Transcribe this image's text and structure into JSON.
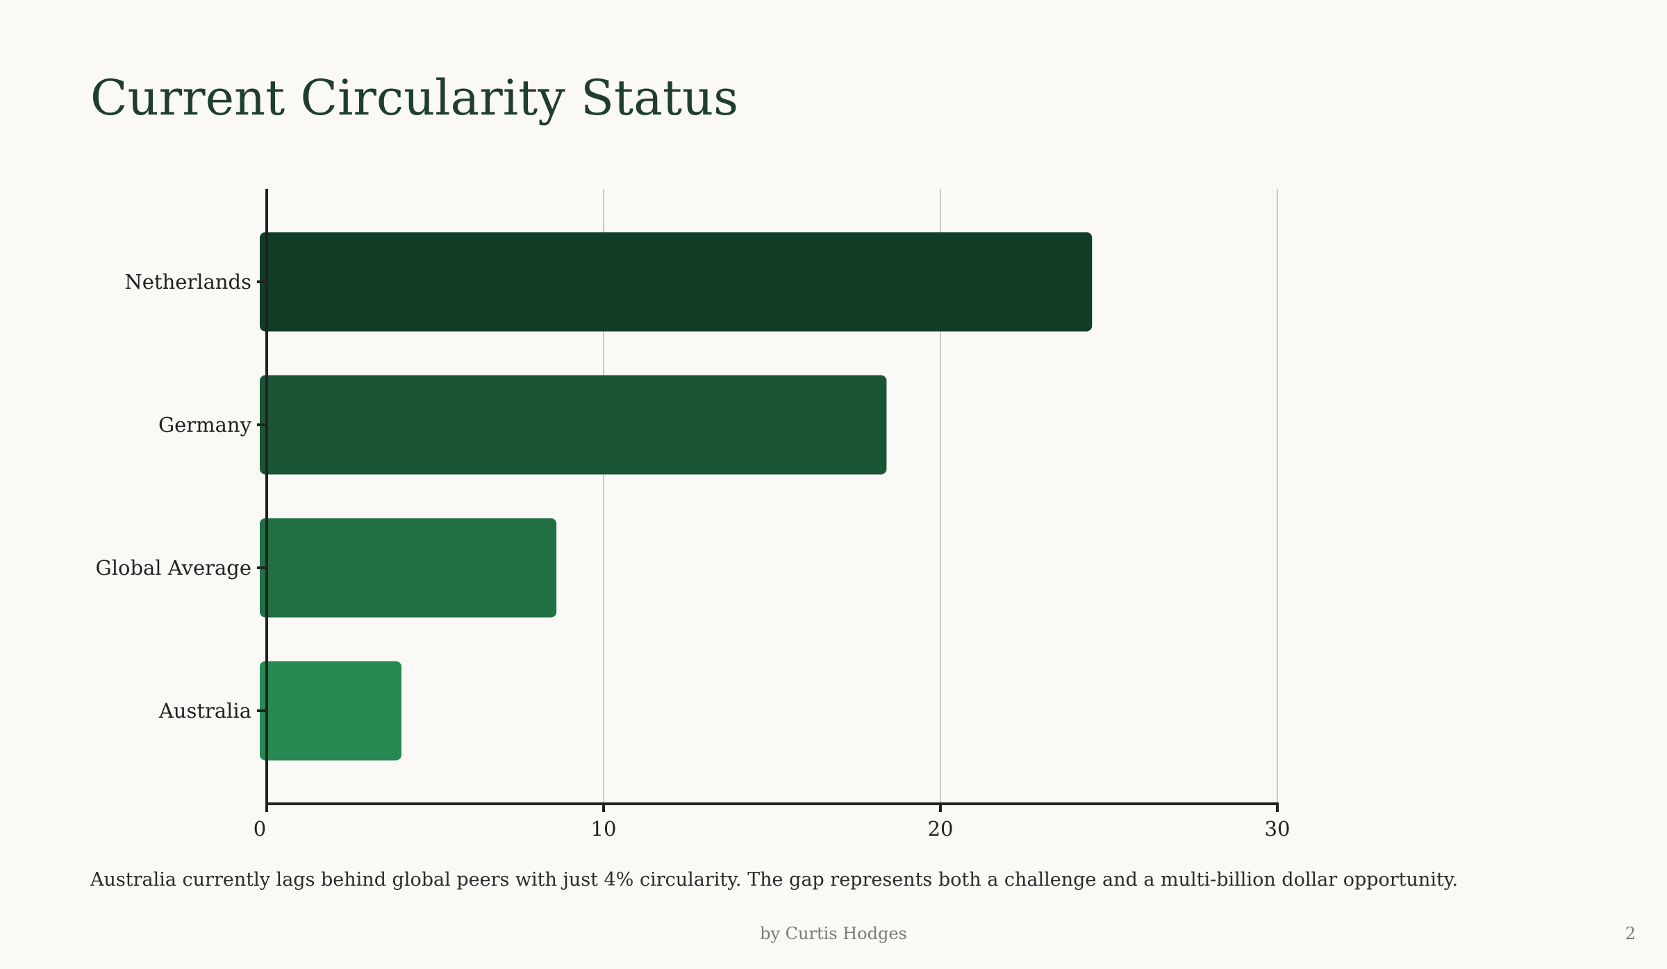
{
  "slide": {
    "title": "Current Circularity Status",
    "caption": "Australia currently lags behind global peers with just 4% circularity. The gap represents both a challenge and a multi-billion dollar opportunity.",
    "footer": "by Curtis Hodges",
    "page_number": "2"
  },
  "chart_data": {
    "type": "bar",
    "orientation": "horizontal",
    "categories": [
      "Netherlands",
      "Germany",
      "Global Average",
      "Australia"
    ],
    "values": [
      24.5,
      18.4,
      8.6,
      4.0
    ],
    "colors": [
      "#113d27",
      "#1a5535",
      "#207044",
      "#268a52"
    ],
    "xlim": [
      0,
      30
    ],
    "xticks": [
      "0",
      "10",
      "20",
      "30"
    ],
    "xtick_values": [
      0,
      10,
      20,
      30
    ],
    "grid": true,
    "title": "",
    "xlabel": "",
    "ylabel": ""
  }
}
